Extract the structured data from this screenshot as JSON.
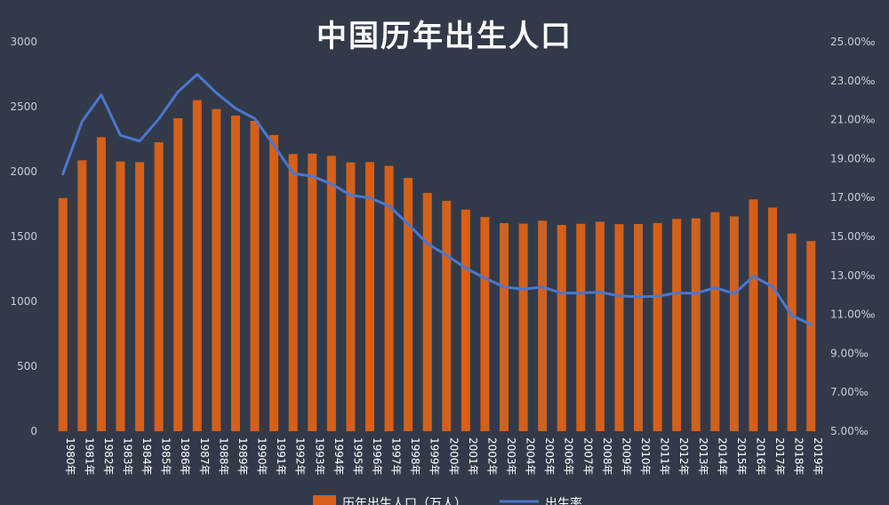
{
  "chart_data": {
    "type": "bar",
    "title": "中国历年出生人口",
    "categories": [
      "1980年",
      "1981年",
      "1982年",
      "1983年",
      "1984年",
      "1985年",
      "1986年",
      "1987年",
      "1988年",
      "1989年",
      "1990年",
      "1991年",
      "1992年",
      "1993年",
      "1994年",
      "1995年",
      "1996年",
      "1997年",
      "1998年",
      "1999年",
      "2000年",
      "2001年",
      "2002年",
      "2003年",
      "2004年",
      "2005年",
      "2006年",
      "2007年",
      "2008年",
      "2009年",
      "2010年",
      "2011年",
      "2012年",
      "2013年",
      "2014年",
      "2015年",
      "2016年",
      "2017年",
      "2018年",
      "2019年"
    ],
    "series": [
      {
        "name": "历年出生人口（万人）",
        "type": "bar",
        "axis": "left",
        "color": "#d4601a",
        "values": [
          1796,
          2087,
          2265,
          2078,
          2073,
          2226,
          2411,
          2551,
          2482,
          2431,
          2391,
          2282,
          2135,
          2138,
          2121,
          2071,
          2073,
          2044,
          1951,
          1836,
          1775,
          1707,
          1650,
          1603,
          1599,
          1621,
          1589,
          1598,
          1613,
          1595,
          1596,
          1604,
          1635,
          1640,
          1687,
          1655,
          1786,
          1723,
          1523,
          1465
        ]
      },
      {
        "name": "出生率",
        "type": "line",
        "axis": "right",
        "color": "#4a77d0",
        "values": [
          18.21,
          20.91,
          22.28,
          20.19,
          19.9,
          21.04,
          22.43,
          23.33,
          22.37,
          21.58,
          21.06,
          19.68,
          18.24,
          18.09,
          17.7,
          17.12,
          16.98,
          16.57,
          15.64,
          14.64,
          14.03,
          13.38,
          12.86,
          12.41,
          12.29,
          12.4,
          12.09,
          12.1,
          12.14,
          11.95,
          11.9,
          11.93,
          12.1,
          12.08,
          12.37,
          12.07,
          12.95,
          12.43,
          10.94,
          10.48
        ]
      }
    ],
    "y_left": {
      "ticks": [
        "0",
        "500",
        "1000",
        "1500",
        "2000",
        "2500",
        "3000"
      ],
      "range": [
        0,
        3000
      ]
    },
    "y_right": {
      "ticks": [
        "5.00‰",
        "7.00‰",
        "9.00‰",
        "11.00‰",
        "13.00‰",
        "15.00‰",
        "17.00‰",
        "19.00‰",
        "21.00‰",
        "23.00‰",
        "25.00‰"
      ],
      "range": [
        5,
        25
      ]
    },
    "grid": false,
    "legend_position": "bottom"
  }
}
